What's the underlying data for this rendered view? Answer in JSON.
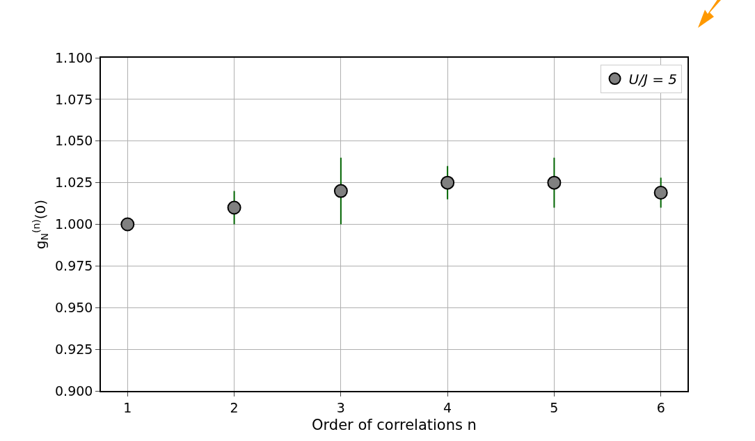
{
  "chart_data": {
    "type": "scatter",
    "xlabel": "Order of correlations n",
    "ylabel": "g$_{N}$$^{(n)}$(0)",
    "x": [
      1,
      2,
      3,
      4,
      5,
      6
    ],
    "series": [
      {
        "name": "U/J = 5",
        "color": "#808080",
        "values": [
          1.0,
          1.01,
          1.02,
          1.025,
          1.025,
          1.019
        ],
        "errors": [
          null,
          0.01,
          0.02,
          0.01,
          0.015,
          0.009
        ]
      }
    ],
    "xlim": [
      0.75,
      6.25
    ],
    "xticks": [
      1,
      2,
      3,
      4,
      5,
      6
    ],
    "ylim": [
      0.9,
      1.1
    ],
    "yticks": [
      {
        "value": 0.9,
        "label": "0.900"
      },
      {
        "value": 0.925,
        "label": "0.925"
      },
      {
        "value": 0.95,
        "label": "0.950"
      },
      {
        "value": 0.975,
        "label": "0.975"
      },
      {
        "value": 1.0,
        "label": "1.000"
      },
      {
        "value": 1.025,
        "label": "1.025"
      },
      {
        "value": 1.05,
        "label": "1.050"
      },
      {
        "value": 1.075,
        "label": "1.075"
      },
      {
        "value": 1.1,
        "label": "1.100"
      }
    ],
    "grid": true,
    "legend": "top right",
    "marker": "circle"
  }
}
